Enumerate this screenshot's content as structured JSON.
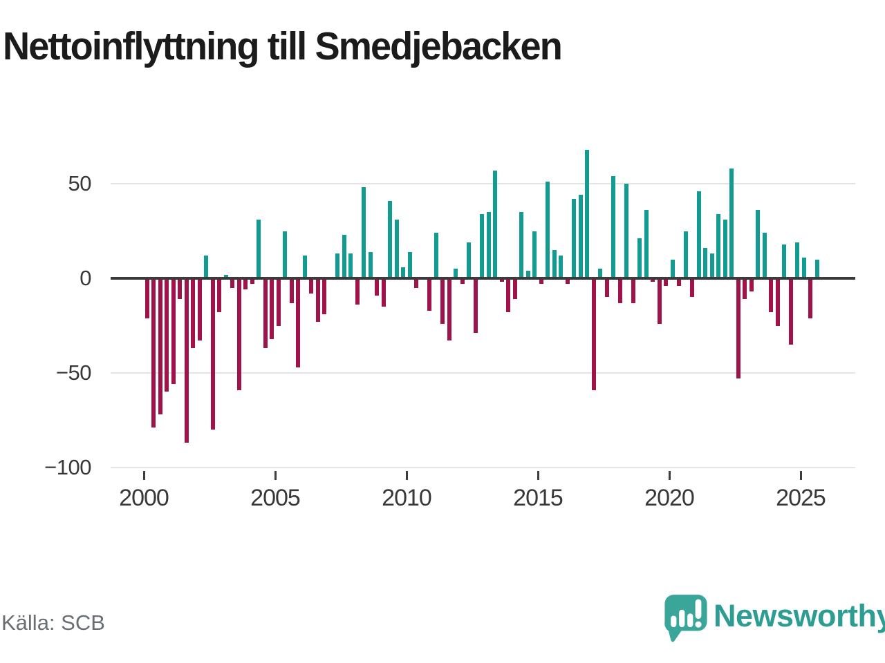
{
  "title": "Nettoinflyttning till Smedjebacken",
  "source_label": "Källa: SCB",
  "brand": {
    "wordmark": "Newsworthy"
  },
  "colors": {
    "positive_bar": "#129c91",
    "negative_bar": "#a0134a",
    "gridline": "#e4e4e4",
    "zero_line": "#3b3b3b",
    "axis_text": "#383838",
    "title_text": "#1b1b1b",
    "source_text": "#696d74",
    "brand_teal": "#2d9c92"
  },
  "chart_data": {
    "type": "bar",
    "title": "Nettoinflyttning till Smedjebacken",
    "grid": true,
    "ylim": [
      -100,
      75
    ],
    "y_axis": {
      "tick_values": [
        50,
        0,
        -50,
        -100
      ],
      "tick_labels": [
        "50",
        "0",
        "−50",
        "−100"
      ]
    },
    "x_axis": {
      "tick_years": [
        2000,
        2005,
        2010,
        2015,
        2020,
        2025
      ],
      "tick_labels": [
        "2000",
        "2005",
        "2010",
        "2015",
        "2020",
        "2025"
      ]
    },
    "quarters": [
      "2000Q1",
      "2000Q2",
      "2000Q3",
      "2000Q4",
      "2001Q1",
      "2001Q2",
      "2001Q3",
      "2001Q4",
      "2002Q1",
      "2002Q2",
      "2002Q3",
      "2002Q4",
      "2003Q1",
      "2003Q2",
      "2003Q3",
      "2003Q4",
      "2004Q1",
      "2004Q2",
      "2004Q3",
      "2004Q4",
      "2005Q1",
      "2005Q2",
      "2005Q3",
      "2005Q4",
      "2006Q1",
      "2006Q2",
      "2006Q3",
      "2006Q4",
      "2007Q1",
      "2007Q2",
      "2007Q3",
      "2007Q4",
      "2008Q1",
      "2008Q2",
      "2008Q3",
      "2008Q4",
      "2009Q1",
      "2009Q2",
      "2009Q3",
      "2009Q4",
      "2010Q1",
      "2010Q2",
      "2010Q3",
      "2010Q4",
      "2011Q1",
      "2011Q2",
      "2011Q3",
      "2011Q4",
      "2012Q1",
      "2012Q2",
      "2012Q3",
      "2012Q4",
      "2013Q1",
      "2013Q2",
      "2013Q3",
      "2013Q4",
      "2014Q1",
      "2014Q2",
      "2014Q3",
      "2014Q4",
      "2015Q1",
      "2015Q2",
      "2015Q3",
      "2015Q4",
      "2016Q1",
      "2016Q2",
      "2016Q3",
      "2016Q4",
      "2017Q1",
      "2017Q2",
      "2017Q3",
      "2017Q4",
      "2018Q1",
      "2018Q2",
      "2018Q3",
      "2018Q4",
      "2019Q1",
      "2019Q2",
      "2019Q3",
      "2019Q4",
      "2020Q1",
      "2020Q2",
      "2020Q3",
      "2020Q4",
      "2021Q1",
      "2021Q2",
      "2021Q3",
      "2021Q4",
      "2022Q1",
      "2022Q2",
      "2022Q3",
      "2022Q4",
      "2023Q1",
      "2023Q2",
      "2023Q3",
      "2023Q4",
      "2024Q1",
      "2024Q2",
      "2024Q3",
      "2024Q4",
      "2025Q1",
      "2025Q2",
      "2025Q3"
    ],
    "values": [
      -21,
      -79,
      -72,
      -60,
      -56,
      -11,
      -87,
      -37,
      -33,
      12,
      -80,
      -18,
      2,
      -5,
      -59,
      -6,
      -3,
      31,
      -37,
      -32,
      -25,
      25,
      -13,
      -47,
      12,
      -8,
      -23,
      -19,
      0,
      13,
      23,
      13,
      -14,
      48,
      14,
      -9,
      -15,
      41,
      31,
      6,
      14,
      -5,
      0,
      -17,
      24,
      -24,
      -33,
      5,
      -3,
      19,
      -29,
      34,
      35,
      57,
      -2,
      -18,
      -11,
      35,
      4,
      25,
      -3,
      51,
      15,
      12,
      -3,
      42,
      44,
      68,
      -59,
      5,
      -10,
      54,
      -13,
      50,
      -13,
      21,
      36,
      -2,
      -24,
      -4,
      10,
      -4,
      25,
      -10,
      46,
      16,
      13,
      34,
      31,
      58,
      -53,
      -11,
      -7,
      36,
      24,
      -18,
      -25,
      18,
      -35,
      19,
      11,
      -21,
      10
    ]
  }
}
